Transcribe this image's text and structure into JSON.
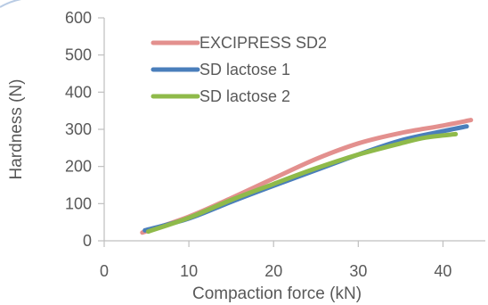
{
  "chart_data": {
    "type": "line",
    "xlabel": "Compaction force (kN)",
    "ylabel": "Hardness (N)",
    "xlim": [
      0,
      45
    ],
    "ylim": [
      0,
      600
    ],
    "xticks": [
      0,
      10,
      20,
      30,
      40
    ],
    "yticks": [
      0,
      100,
      200,
      300,
      400,
      500,
      600
    ],
    "grid": false,
    "legend_position": "top-left",
    "series": [
      {
        "name": "EXCIPRESS SD2",
        "color": "#e3908e",
        "x": [
          4.5,
          10,
          15,
          20,
          25,
          30,
          35,
          40,
          43.3
        ],
        "y": [
          22,
          65,
          115,
          168,
          220,
          262,
          290,
          310,
          325
        ]
      },
      {
        "name": "SD lactose 1",
        "color": "#4a7ebb",
        "x": [
          4.8,
          10,
          15,
          20,
          25,
          30,
          35,
          40,
          42.8
        ],
        "y": [
          28,
          60,
          105,
          148,
          190,
          232,
          270,
          295,
          308
        ]
      },
      {
        "name": "SD lactose 2",
        "color": "#8fba4a",
        "x": [
          5.2,
          10,
          15,
          20,
          25,
          30,
          35,
          38,
          41.5
        ],
        "y": [
          25,
          62,
          110,
          153,
          195,
          232,
          262,
          278,
          287
        ]
      }
    ]
  }
}
